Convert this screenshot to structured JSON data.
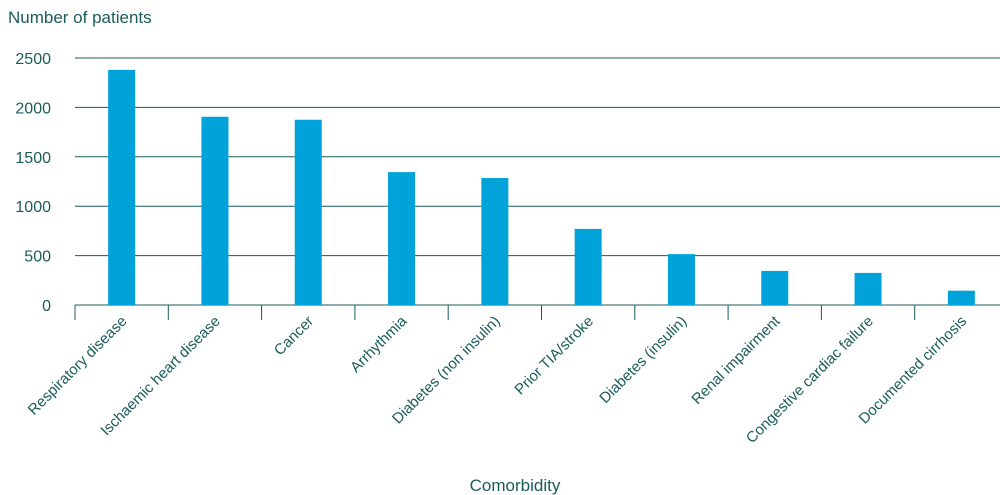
{
  "chart_data": {
    "type": "bar",
    "ylabel": "Number of patients",
    "xlabel": "Comorbidity",
    "categories": [
      "Respiratory disease",
      "Ischaemic heart disease",
      "Cancer",
      "Arrhythmia",
      "Diabetes (non insulin)",
      "Prior TIA/stroke",
      "Diabetes (insulin)",
      "Renal impairment",
      "Congestive cardiac failure",
      "Documented cirrhosis"
    ],
    "values": [
      2380,
      1905,
      1875,
      1345,
      1285,
      770,
      515,
      345,
      325,
      145
    ],
    "ylim": [
      0,
      2500
    ],
    "yticks": [
      "0",
      "500",
      "1000",
      "1500",
      "2000",
      "2500"
    ],
    "grid": true,
    "colors": {
      "bar": "#00a3d9",
      "grid": "#1a5c5c",
      "text": "#1a5c5c"
    }
  }
}
